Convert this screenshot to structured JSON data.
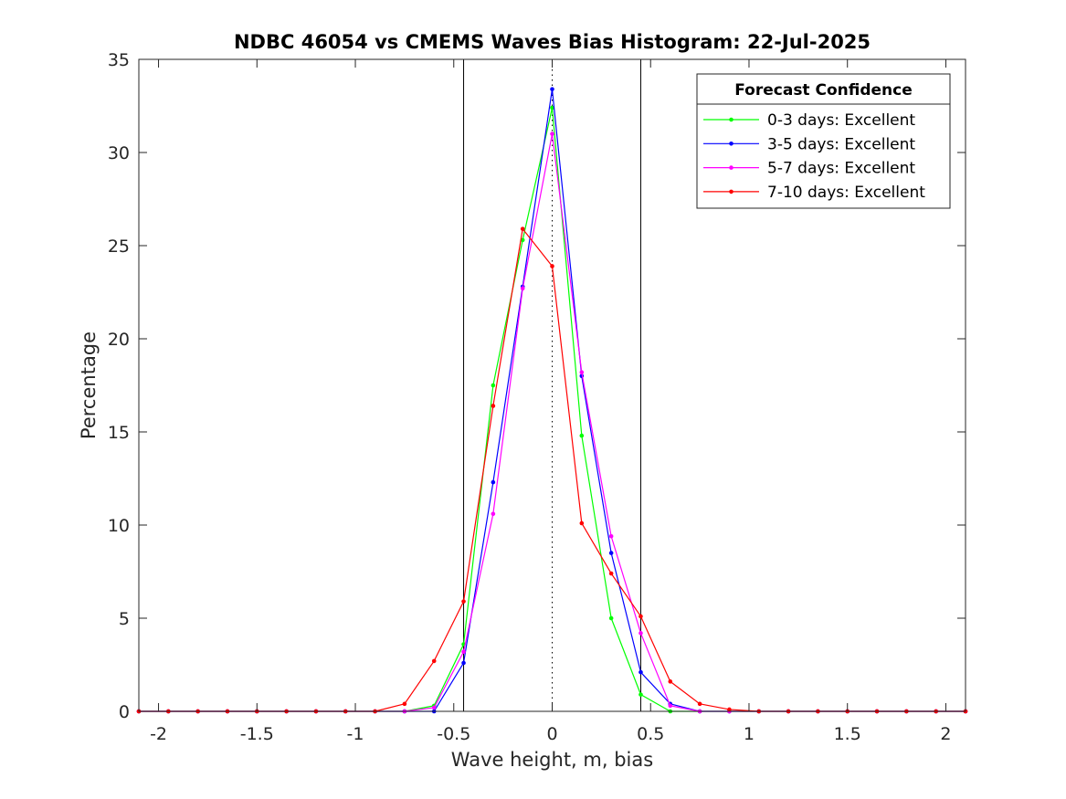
{
  "chart_data": {
    "type": "line",
    "title": "NDBC 46054 vs CMEMS Waves Bias Histogram: 22-Jul-2025",
    "xlabel": "Wave height, m, bias",
    "ylabel": "Percentage",
    "xlim": [
      -2.1,
      2.1
    ],
    "ylim": [
      0,
      35
    ],
    "xticks": [
      -2,
      -1.5,
      -1,
      -0.5,
      0,
      0.5,
      1,
      1.5,
      2
    ],
    "xtick_labels": [
      "-2",
      "-1.5",
      "-1",
      "-0.5",
      "0",
      "0.5",
      "1",
      "1.5",
      "2"
    ],
    "yticks": [
      0,
      5,
      10,
      15,
      20,
      25,
      30,
      35
    ],
    "ytick_labels": [
      "0",
      "5",
      "10",
      "15",
      "20",
      "25",
      "30",
      "35"
    ],
    "grid": false,
    "reference_lines": {
      "solid": [
        -0.45,
        0.45
      ],
      "dotted": [
        0
      ]
    },
    "legend": {
      "title": "Forecast Confidence",
      "placement": "top-right"
    },
    "x": [
      -2.1,
      -1.95,
      -1.8,
      -1.65,
      -1.5,
      -1.35,
      -1.2,
      -1.05,
      -0.9,
      -0.75,
      -0.6,
      -0.45,
      -0.3,
      -0.15,
      0,
      0.15,
      0.3,
      0.45,
      0.6,
      0.75,
      0.9,
      1.05,
      1.2,
      1.35,
      1.5,
      1.65,
      1.8,
      1.95,
      2.1
    ],
    "series": [
      {
        "name": "0-3 days: Excellent",
        "color": "#00ff00",
        "values": [
          0,
          0,
          0,
          0,
          0,
          0,
          0,
          0,
          0,
          0,
          0.3,
          3.6,
          17.5,
          25.3,
          32.4,
          14.8,
          5.0,
          0.9,
          0,
          0,
          0,
          0,
          0,
          0,
          0,
          0,
          0,
          0,
          0
        ]
      },
      {
        "name": "3-5 days: Excellent",
        "color": "#0000ff",
        "values": [
          0,
          0,
          0,
          0,
          0,
          0,
          0,
          0,
          0,
          0,
          0,
          2.6,
          12.3,
          22.8,
          33.4,
          18.0,
          8.5,
          2.1,
          0.4,
          0,
          0,
          0,
          0,
          0,
          0,
          0,
          0,
          0,
          0
        ]
      },
      {
        "name": "5-7 days: Excellent",
        "color": "#ff00ff",
        "values": [
          0,
          0,
          0,
          0,
          0,
          0,
          0,
          0,
          0,
          0,
          0.2,
          3.2,
          10.6,
          22.7,
          31.0,
          18.2,
          9.4,
          4.2,
          0.3,
          0,
          0,
          0,
          0,
          0,
          0,
          0,
          0,
          0,
          0
        ]
      },
      {
        "name": "7-10 days: Excellent",
        "color": "#ff0000",
        "values": [
          0,
          0,
          0,
          0,
          0,
          0,
          0,
          0,
          0,
          0.4,
          2.7,
          5.9,
          16.4,
          25.9,
          23.9,
          10.1,
          7.4,
          5.1,
          1.6,
          0.4,
          0.1,
          0,
          0,
          0,
          0,
          0,
          0,
          0,
          0
        ]
      }
    ]
  }
}
